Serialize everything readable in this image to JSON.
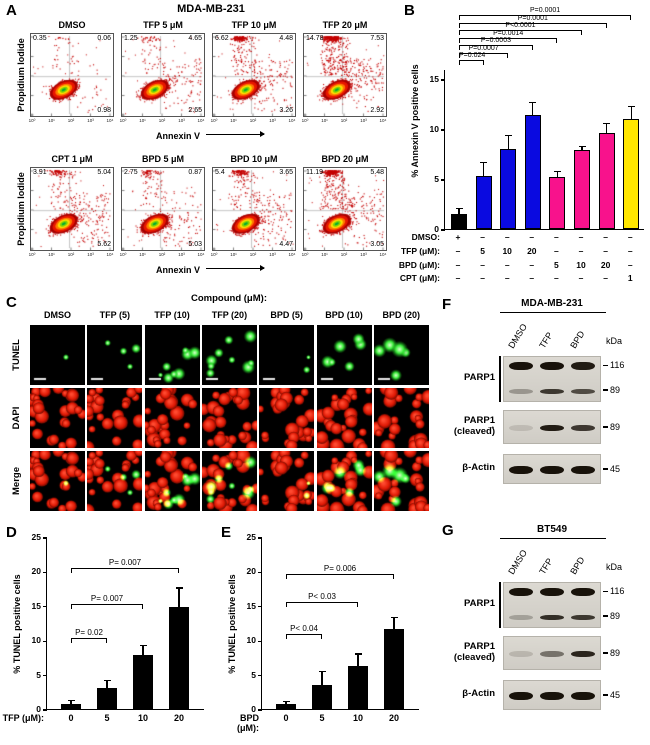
{
  "panelA": {
    "label": "A",
    "title": "MDA-MB-231",
    "xlabel": "Annexin V",
    "ylabel": "Propidium Iodide",
    "tick_labels": [
      "10⁰",
      "10¹",
      "10²",
      "10³",
      "10⁴"
    ],
    "rows": [
      {
        "plots": [
          {
            "title": "DMSO",
            "ul": "0.35",
            "ur": "0.06",
            "lr": "0.98"
          },
          {
            "title": "TFP 5 μM",
            "ul": "1.25",
            "ur": "4.65",
            "lr": "2.65"
          },
          {
            "title": "TFP 10 μM",
            "ul": "6.62",
            "ur": "4.48",
            "lr": "3.26"
          },
          {
            "title": "TFP 20 μM",
            "ul": "14.78",
            "ur": "7.53",
            "lr": "2.92"
          }
        ]
      },
      {
        "plots": [
          {
            "title": "CPT 1 μM",
            "ul": "3.91",
            "ur": "5.04",
            "lr": "5.62"
          },
          {
            "title": "BPD 5 μM",
            "ul": "2.75",
            "ur": "0.87",
            "lr": "5.03"
          },
          {
            "title": "BPD 10 μM",
            "ul": "5.4",
            "ur": "3.65",
            "lr": "4.47"
          },
          {
            "title": "BPD 20 μM",
            "ul": "11.19",
            "ur": "5.48",
            "lr": "3.05"
          }
        ]
      }
    ]
  },
  "chart_data": [
    {
      "id": "annexin_positive",
      "type": "bar",
      "ylabel": "% Annexin V positive cells",
      "categories": [
        "DMSO",
        "TFP 5",
        "TFP 10",
        "TFP 20",
        "BPD 5",
        "BPD 10",
        "BPD 20",
        "CPT 1"
      ],
      "values": [
        1.5,
        5.3,
        8.0,
        11.4,
        5.2,
        7.9,
        9.6,
        11.0
      ],
      "errors": [
        0.5,
        1.3,
        1.3,
        1.2,
        0.5,
        0.3,
        0.9,
        1.2
      ],
      "colors": [
        "#000000",
        "#0a0ae0",
        "#0a0ae0",
        "#0a0ae0",
        "#f8128c",
        "#f8128c",
        "#f8128c",
        "#ffe600"
      ],
      "ylim": [
        0,
        16
      ],
      "yticks": [
        0,
        5,
        10,
        15
      ],
      "significance": [
        {
          "bar": 1,
          "text": "P=0.024"
        },
        {
          "bar": 2,
          "text": "P=0.0007"
        },
        {
          "bar": 3,
          "text": "P=0.0003"
        },
        {
          "bar": 4,
          "text": "P=0.0014"
        },
        {
          "bar": 5,
          "text": "P<0.0001"
        },
        {
          "bar": 6,
          "text": "P=0.0001"
        },
        {
          "bar": 7,
          "text": "P=0.0001"
        }
      ]
    },
    {
      "id": "tunel_tfp",
      "type": "bar",
      "ylabel": "% TUNEL positive cells",
      "xlabel": "TFP (μM):",
      "categories": [
        "0",
        "5",
        "10",
        "20"
      ],
      "values": [
        0.8,
        3.0,
        7.8,
        14.8
      ],
      "errors": [
        0.4,
        1.1,
        1.3,
        2.7
      ],
      "colors": [
        "#000000",
        "#000000",
        "#000000",
        "#000000"
      ],
      "ylim": [
        0,
        25
      ],
      "yticks": [
        0,
        5,
        10,
        15,
        20,
        25
      ],
      "significance": [
        {
          "bar": 1,
          "text": "P= 0.02"
        },
        {
          "bar": 2,
          "text": "P= 0.007"
        },
        {
          "bar": 3,
          "text": "P= 0.007"
        }
      ]
    },
    {
      "id": "tunel_bpd",
      "type": "bar",
      "ylabel": "% TUNEL positive cells",
      "xlabel": "BPD (μM):",
      "categories": [
        "0",
        "5",
        "10",
        "20"
      ],
      "values": [
        0.7,
        3.5,
        6.3,
        11.7
      ],
      "errors": [
        0.3,
        1.9,
        1.6,
        1.5
      ],
      "colors": [
        "#000000",
        "#000000",
        "#000000",
        "#000000"
      ],
      "ylim": [
        0,
        25
      ],
      "yticks": [
        0,
        5,
        10,
        15,
        20,
        25
      ],
      "significance": [
        {
          "bar": 1,
          "text": "P< 0.04"
        },
        {
          "bar": 2,
          "text": "P< 0.03"
        },
        {
          "bar": 3,
          "text": "P= 0.006"
        }
      ]
    }
  ],
  "panelB": {
    "label": "B",
    "chart": 0,
    "treatment_rows": [
      {
        "label": "DMSO:",
        "values": [
          "+",
          "–",
          "–",
          "–",
          "–",
          "–",
          "–",
          "–"
        ]
      },
      {
        "label": "TFP (μM):",
        "values": [
          "–",
          "5",
          "10",
          "20",
          "–",
          "–",
          "–",
          "–"
        ]
      },
      {
        "label": "BPD (μM):",
        "values": [
          "–",
          "–",
          "–",
          "–",
          "5",
          "10",
          "20",
          "–"
        ]
      },
      {
        "label": "CPT (μM):",
        "values": [
          "–",
          "–",
          "–",
          "–",
          "–",
          "–",
          "–",
          "1"
        ]
      }
    ]
  },
  "panelC": {
    "label": "C",
    "header": "Compound (μM):",
    "columns": [
      "DMSO",
      "TFP (5)",
      "TFP (10)",
      "TFP (20)",
      "BPD (5)",
      "BPD (10)",
      "BPD (20)"
    ],
    "rows": [
      "TUNEL",
      "DAPI",
      "Merge"
    ],
    "tunel_spots": [
      1,
      4,
      8,
      9,
      2,
      6,
      5
    ],
    "spot_scale": [
      0.6,
      0.9,
      1.1,
      1.3,
      0.8,
      1.2,
      1.5
    ]
  },
  "panelD": {
    "label": "D",
    "chart": 1
  },
  "panelE": {
    "label": "E",
    "chart": 2
  },
  "panelF": {
    "label": "F",
    "title": "MDA-MB-231",
    "kda_label": "kDa",
    "lanes": [
      "DMSO",
      "TFP",
      "BPD"
    ],
    "blots": [
      {
        "label": "PARP1",
        "bracket": true,
        "h": 46,
        "bands": [
          {
            "y": 0.2,
            "t": 8,
            "lanes": [
              1,
              1,
              0.95
            ]
          },
          {
            "y": 0.74,
            "t": 5,
            "lanes": [
              0.3,
              0.8,
              0.7
            ]
          }
        ],
        "markers": [
          {
            "kda": "116",
            "y": 0.2
          },
          {
            "kda": "89",
            "y": 0.74
          }
        ]
      },
      {
        "label": "PARP1",
        "label2": "(cleaved)",
        "arrow": true,
        "h": 34,
        "bands": [
          {
            "y": 0.5,
            "t": 6,
            "lanes": [
              0.12,
              0.95,
              0.8
            ]
          }
        ],
        "markers": [
          {
            "kda": "89",
            "y": 0.5
          }
        ]
      },
      {
        "label": "β-Actin",
        "h": 30,
        "bands": [
          {
            "y": 0.5,
            "t": 8,
            "lanes": [
              1,
              1,
              1
            ]
          }
        ],
        "markers": [
          {
            "kda": "45",
            "y": 0.5
          }
        ]
      }
    ]
  },
  "panelG": {
    "label": "G",
    "title": "BT549",
    "kda_label": "kDa",
    "lanes": [
      "DMSO",
      "TFP",
      "BPD"
    ],
    "blots": [
      {
        "label": "PARP1",
        "bracket": true,
        "h": 46,
        "bands": [
          {
            "y": 0.2,
            "t": 8,
            "lanes": [
              1,
              1,
              1
            ]
          },
          {
            "y": 0.74,
            "t": 5,
            "lanes": [
              0.25,
              0.85,
              0.8
            ]
          }
        ],
        "markers": [
          {
            "kda": "116",
            "y": 0.2
          },
          {
            "kda": "89",
            "y": 0.74
          }
        ]
      },
      {
        "label": "PARP1",
        "label2": "(cleaved)",
        "arrow": true,
        "h": 34,
        "bands": [
          {
            "y": 0.5,
            "t": 6,
            "lanes": [
              0.15,
              0.5,
              0.9
            ]
          }
        ],
        "markers": [
          {
            "kda": "89",
            "y": 0.5
          }
        ]
      },
      {
        "label": "β-Actin",
        "h": 30,
        "bands": [
          {
            "y": 0.5,
            "t": 8,
            "lanes": [
              1,
              1,
              1
            ]
          }
        ],
        "markers": [
          {
            "kda": "45",
            "y": 0.5
          }
        ]
      }
    ]
  }
}
